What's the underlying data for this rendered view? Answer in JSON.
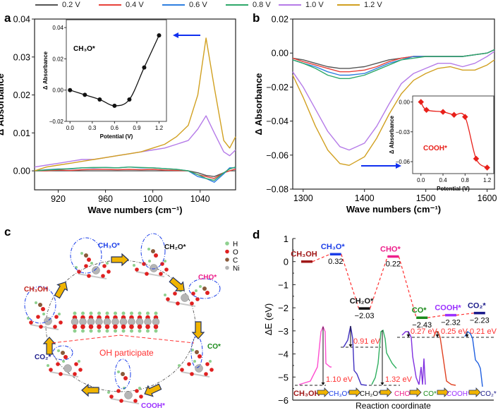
{
  "legend": [
    {
      "label": "0.2 V",
      "color": "#555555"
    },
    {
      "label": "0.4 V",
      "color": "#e8413a"
    },
    {
      "label": "0.6 V",
      "color": "#2f7fe0"
    },
    {
      "label": "0.8 V",
      "color": "#2fa86a"
    },
    {
      "label": "1.0 V",
      "color": "#b57be8"
    },
    {
      "label": "1.2 V",
      "color": "#d1a020"
    }
  ],
  "panel_labels": [
    "a",
    "b",
    "c",
    "d"
  ],
  "chart_data": [
    {
      "panel": "a",
      "type": "line",
      "xlabel": "Wave numbers (cm⁻¹)",
      "ylabel": "Δ Absorbance",
      "xlim": [
        900,
        1070
      ],
      "ylim": [
        -0.005,
        0.04
      ],
      "xticks": [
        "920",
        "960",
        "1000",
        "1040"
      ],
      "yticks": [
        "0.00",
        "0.01",
        "0.02",
        "0.03",
        "0.04"
      ],
      "x": [
        900,
        910,
        920,
        930,
        940,
        950,
        960,
        970,
        980,
        990,
        1000,
        1010,
        1020,
        1030,
        1038,
        1045,
        1052,
        1060,
        1065,
        1070
      ],
      "series": [
        {
          "name": "0.2 V",
          "values": [
            0,
            0,
            0,
            0,
            0,
            0,
            0,
            0,
            0,
            0,
            0,
            0,
            0,
            0,
            -0.0005,
            -0.0012,
            -0.0015,
            -0.0005,
            0,
            0
          ]
        },
        {
          "name": "0.4 V",
          "values": [
            0,
            0,
            0.0002,
            0.0001,
            0.0003,
            0.0004,
            0.0004,
            0.0003,
            0.0004,
            0.0003,
            0.0004,
            0.0002,
            0.0001,
            0,
            -0.001,
            -0.0015,
            -0.002,
            -0.0005,
            0,
            0.0005
          ]
        },
        {
          "name": "0.6 V",
          "values": [
            0,
            0.0003,
            0.0005,
            0.0005,
            0.0008,
            0.0008,
            0.0009,
            0.0008,
            0.001,
            0.0008,
            0.0008,
            0.0006,
            0.0004,
            0,
            -0.0015,
            -0.002,
            -0.003,
            -0.0008,
            0.0008,
            0.0008
          ]
        },
        {
          "name": "0.8 V",
          "values": [
            0,
            0.0002,
            0.0004,
            0.0006,
            0.0008,
            0.0009,
            0.0009,
            0.0008,
            0.001,
            0.0009,
            0.0008,
            0.0006,
            0.0004,
            0,
            -0.001,
            -0.002,
            -0.0025,
            -0.0005,
            0.0005,
            0.001
          ]
        },
        {
          "name": "1.0 V",
          "values": [
            0.001,
            0.0015,
            0.002,
            0.0025,
            0.003,
            0.003,
            0.0035,
            0.004,
            0.0045,
            0.005,
            0.0055,
            0.006,
            0.007,
            0.008,
            0.011,
            0.0145,
            0.01,
            0.005,
            0.004,
            0.0055
          ]
        },
        {
          "name": "1.2 V",
          "values": [
            0,
            0.001,
            0.0015,
            0.002,
            0.0025,
            0.003,
            0.0035,
            0.004,
            0.0045,
            0.005,
            0.006,
            0.007,
            0.009,
            0.012,
            0.02,
            0.035,
            0.022,
            0.008,
            0.006,
            0.009
          ]
        }
      ],
      "inset": {
        "type": "scatter-line",
        "label": "CH₃O*",
        "color": "#111111",
        "xlabel": "Potential (V)",
        "ylabel": "Δ Absorbance",
        "xlim": [
          -0.05,
          1.3
        ],
        "ylim": [
          -0.02,
          0.045
        ],
        "xticks": [
          "0.0",
          "0.3",
          "0.6",
          "0.9",
          "1.2"
        ],
        "yticks": [
          "−0.02",
          "0.00",
          "0.02",
          "0.04"
        ],
        "x": [
          0.0,
          0.2,
          0.4,
          0.6,
          0.8,
          1.0,
          1.2
        ],
        "values": [
          0.0,
          -0.003,
          -0.006,
          -0.01,
          -0.006,
          0.0145,
          0.035
        ]
      }
    },
    {
      "panel": "b",
      "type": "line",
      "xlabel": "Wave numbers (cm⁻¹)",
      "ylabel": "Δ Absorbance",
      "xlim": [
        1283,
        1612
      ],
      "ylim": [
        -0.08,
        0.02
      ],
      "xticks": [
        "1300",
        "1400",
        "1500",
        "1600"
      ],
      "yticks": [
        "−0.08",
        "−0.06",
        "−0.04",
        "−0.02",
        "0.00",
        "0.02"
      ],
      "x": [
        1283,
        1300,
        1320,
        1340,
        1360,
        1375,
        1400,
        1420,
        1440,
        1460,
        1480,
        1500,
        1520,
        1540,
        1560,
        1580,
        1600,
        1612
      ],
      "series": [
        {
          "name": "0.2 V",
          "values": [
            -0.003,
            -0.004,
            -0.006,
            -0.008,
            -0.009,
            -0.009,
            -0.008,
            -0.006,
            -0.004,
            -0.003,
            -0.002,
            -0.002,
            -0.002,
            -0.002,
            -0.002,
            -0.001,
            0.0,
            0.002
          ]
        },
        {
          "name": "0.4 V",
          "values": [
            -0.003,
            -0.005,
            -0.007,
            -0.009,
            -0.011,
            -0.011,
            -0.01,
            -0.008,
            -0.005,
            -0.003,
            -0.002,
            -0.002,
            -0.002,
            -0.002,
            -0.002,
            -0.001,
            0.0,
            0.002
          ]
        },
        {
          "name": "0.6 V",
          "values": [
            -0.004,
            -0.006,
            -0.008,
            -0.011,
            -0.013,
            -0.013,
            -0.012,
            -0.009,
            -0.006,
            -0.004,
            -0.002,
            -0.002,
            -0.002,
            -0.002,
            -0.002,
            -0.001,
            0.0,
            0.002
          ]
        },
        {
          "name": "0.8 V",
          "values": [
            -0.004,
            -0.006,
            -0.009,
            -0.013,
            -0.015,
            -0.015,
            -0.013,
            -0.01,
            -0.007,
            -0.004,
            -0.003,
            -0.002,
            -0.002,
            -0.002,
            -0.002,
            -0.001,
            0.0,
            0.002
          ]
        },
        {
          "name": "1.0 V",
          "values": [
            -0.011,
            -0.02,
            -0.033,
            -0.046,
            -0.055,
            -0.057,
            -0.053,
            -0.043,
            -0.03,
            -0.018,
            -0.012,
            -0.009,
            -0.006,
            -0.006,
            -0.008,
            -0.006,
            -0.002,
            0.001
          ]
        },
        {
          "name": "1.2 V",
          "values": [
            -0.013,
            -0.026,
            -0.043,
            -0.057,
            -0.065,
            -0.066,
            -0.061,
            -0.05,
            -0.036,
            -0.024,
            -0.016,
            -0.012,
            -0.009,
            -0.008,
            -0.01,
            -0.01,
            -0.007,
            -0.004
          ]
        }
      ],
      "inset": {
        "type": "scatter-line",
        "label": "COOH*",
        "color": "#e8201a",
        "xlabel": "Potential (V)",
        "ylabel": "Δ Absorbance",
        "xlim": [
          -0.15,
          1.32
        ],
        "ylim": [
          -0.072,
          0.006
        ],
        "xticks": [
          "0.0",
          "0.4",
          "0.8",
          "1.2"
        ],
        "yticks": [
          "−0.06",
          "−0.03",
          "0.00"
        ],
        "x": [
          0.0,
          0.1,
          0.4,
          0.6,
          0.8,
          1.0,
          1.2
        ],
        "values": [
          0.0,
          -0.008,
          -0.01,
          -0.013,
          -0.015,
          -0.057,
          -0.066
        ]
      }
    },
    {
      "panel": "d",
      "type": "energy-profile",
      "xlabel": "Reaction coordinate",
      "ylabel": "ΔE (eV)",
      "ylim": [
        -6,
        1
      ],
      "yticks": [
        "−6",
        "−5",
        "−4",
        "−3",
        "−2",
        "−1",
        "0",
        "1"
      ],
      "states": [
        {
          "name": "CH₃OH",
          "energy": 0.0,
          "value_label": "",
          "color": "#a01818"
        },
        {
          "name": "CH₃O*",
          "energy": 0.32,
          "value_label": "0.32",
          "color": "#1a3de8"
        },
        {
          "name": "CH₂O*",
          "energy": -2.03,
          "value_label": "−2.03",
          "color": "#111111"
        },
        {
          "name": "CHO*",
          "energy": 0.22,
          "value_label": "0.22",
          "color": "#ee1f8a"
        },
        {
          "name": "CO*",
          "energy": -2.43,
          "value_label": "−2.43",
          "color": "#1a8a1a"
        },
        {
          "name": "COOH*",
          "energy": -2.32,
          "value_label": "−2.32",
          "color": "#9b30ff"
        },
        {
          "name": "CO₂*",
          "energy": -2.23,
          "value_label": "−2.23",
          "color": "#1a1a8a"
        }
      ],
      "barriers": [
        "1.10 eV",
        "0.91 eV",
        "1.32 eV",
        "0.27 eV",
        "0.25 eV",
        "0.21 eV"
      ],
      "bottom_labels": [
        "CH₃OH",
        "CH₃O*",
        "CH₂O*",
        "CHO*",
        "CO*",
        "COOH*",
        "CO₂*"
      ]
    }
  ],
  "diagram_c": {
    "species": [
      {
        "label": "CH₃OH",
        "color": "#c0201a"
      },
      {
        "label": "CH₃O*",
        "color": "#1a3de8"
      },
      {
        "label": "CH₂O*",
        "color": "#111111"
      },
      {
        "label": "CHO*",
        "color": "#ee1f8a"
      },
      {
        "label": "CO*",
        "color": "#1a8a1a"
      },
      {
        "label": "COOH*",
        "color": "#9b30ff"
      },
      {
        "label": "CO₂*",
        "color": "#1a1a8a"
      }
    ],
    "oh_label": "OH participate",
    "atom_legend": [
      {
        "label": "H",
        "color": "#8fd08f"
      },
      {
        "label": "O",
        "color": "#e02020"
      },
      {
        "label": "C",
        "color": "#8a5a3a"
      },
      {
        "label": "Ni",
        "color": "#b5b5b5"
      }
    ]
  }
}
